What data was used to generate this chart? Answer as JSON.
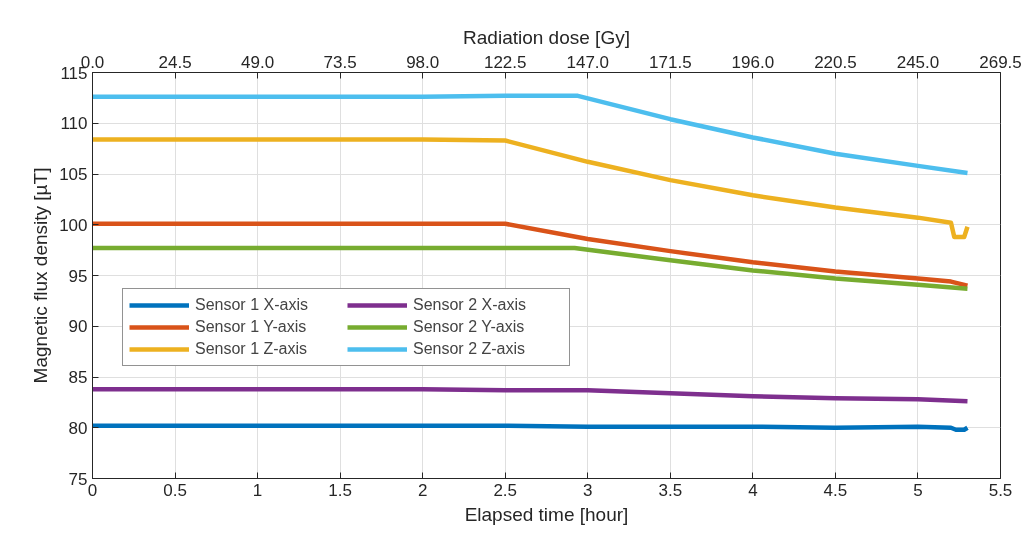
{
  "chart_data": {
    "type": "line",
    "xlabel": "Elapsed time [hour]",
    "ylabel": "Magnetic flux density [µT]",
    "x2label": "Radiation dose [Gy]",
    "xlim": [
      0,
      5.5
    ],
    "xticks": [
      0,
      0.5,
      1,
      1.5,
      2,
      2.5,
      3,
      3.5,
      4,
      4.5,
      5,
      5.5
    ],
    "x2lim": [
      0,
      269.5
    ],
    "x2ticks": [
      {
        "value": 0,
        "label": "0.0"
      },
      24.5,
      {
        "value": 49,
        "label": "49.0"
      },
      73.5,
      {
        "value": 98,
        "label": "98.0"
      },
      122.5,
      {
        "value": 147,
        "label": "147.0"
      },
      171.5,
      {
        "value": 196,
        "label": "196.0"
      },
      220.5,
      {
        "value": 245,
        "label": "245.0"
      },
      269.5
    ],
    "ylim": [
      75,
      115
    ],
    "yticks": [
      75,
      80,
      85,
      90,
      95,
      100,
      105,
      110,
      115
    ],
    "grid": true,
    "legend": "left",
    "line_style": "solid",
    "marker": "none",
    "series": [
      {
        "name": "Sensor 1 X-axis",
        "color": "#0072bd",
        "x": [
          0,
          1,
          2,
          2.5,
          3,
          3.5,
          4,
          4.5,
          5,
          5.2,
          5.23,
          5.28,
          5.3
        ],
        "values": [
          80.2,
          80.2,
          80.2,
          80.2,
          80.1,
          80.1,
          80.1,
          80.0,
          80.1,
          80.0,
          79.8,
          79.8,
          80.0
        ]
      },
      {
        "name": "Sensor 1 Y-axis",
        "color": "#d95319",
        "x": [
          0,
          1,
          2,
          2.5,
          3,
          3.5,
          4,
          4.5,
          5,
          5.2,
          5.3
        ],
        "values": [
          100.1,
          100.1,
          100.1,
          100.1,
          98.6,
          97.4,
          96.3,
          95.4,
          94.7,
          94.4,
          94.0
        ]
      },
      {
        "name": "Sensor 1 Z-axis",
        "color": "#edb120",
        "x": [
          0,
          1,
          2,
          2.5,
          3,
          3.5,
          4,
          4.5,
          5,
          5.2,
          5.22,
          5.28,
          5.3
        ],
        "values": [
          108.4,
          108.4,
          108.4,
          108.3,
          106.2,
          104.4,
          102.9,
          101.7,
          100.7,
          100.2,
          98.8,
          98.8,
          99.8
        ]
      },
      {
        "name": "Sensor 2 X-axis",
        "color": "#7e2f8e",
        "x": [
          0,
          1,
          2,
          2.5,
          3,
          3.5,
          4,
          4.5,
          5,
          5.3
        ],
        "values": [
          83.8,
          83.8,
          83.8,
          83.7,
          83.7,
          83.4,
          83.1,
          82.9,
          82.8,
          82.6
        ]
      },
      {
        "name": "Sensor 2 Y-axis",
        "color": "#77ac30",
        "x": [
          0,
          1,
          2,
          2.5,
          2.92,
          3.5,
          4,
          4.5,
          5,
          5.3
        ],
        "values": [
          97.7,
          97.7,
          97.7,
          97.7,
          97.7,
          96.5,
          95.5,
          94.7,
          94.1,
          93.7
        ]
      },
      {
        "name": "Sensor 2 Z-axis",
        "color": "#4dbeee",
        "x": [
          0,
          1,
          2,
          2.5,
          2.94,
          3.5,
          4,
          4.5,
          5,
          5.3
        ],
        "values": [
          112.6,
          112.6,
          112.6,
          112.7,
          112.7,
          110.4,
          108.6,
          107.0,
          105.8,
          105.1
        ]
      }
    ]
  }
}
